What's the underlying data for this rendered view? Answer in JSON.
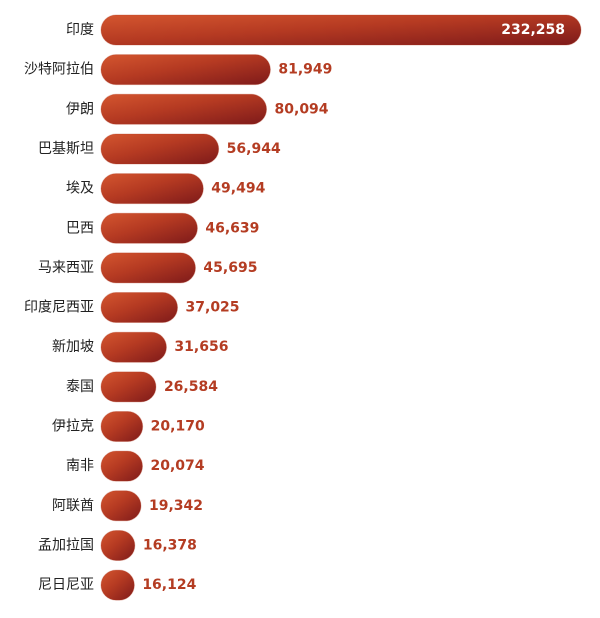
{
  "chart_data": {
    "type": "bar",
    "orientation": "horizontal",
    "categories": [
      "印度",
      "沙特阿拉伯",
      "伊朗",
      "巴基斯坦",
      "埃及",
      "巴西",
      "马来西亚",
      "印度尼西亚",
      "新加坡",
      "泰国",
      "伊拉克",
      "南非",
      "阿联酋",
      "孟加拉国",
      "尼日尼亚"
    ],
    "values": [
      232258,
      81949,
      80094,
      56944,
      49494,
      46639,
      45695,
      37025,
      31656,
      26584,
      20170,
      20074,
      19342,
      16378,
      16124
    ],
    "value_labels": [
      "232,258",
      "81,949",
      "80,094",
      "56,944",
      "49,494",
      "46,639",
      "45,695",
      "37,025",
      "31,656",
      "26,584",
      "20,170",
      "20,074",
      "19,342",
      "16,378",
      "16,124"
    ],
    "color": "#b43c22"
  }
}
